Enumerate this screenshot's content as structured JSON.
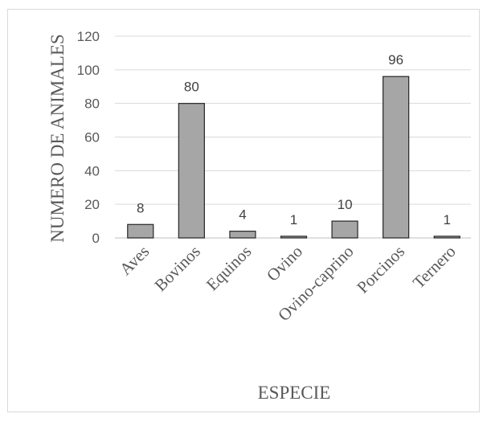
{
  "chart_data": {
    "type": "bar",
    "title": "",
    "xlabel": "ESPECIE",
    "ylabel": "NUMERO DE ANIMALES",
    "categories": [
      "Aves",
      "Bovinos",
      "Equinos",
      "Ovino",
      "Ovino-caprino",
      "Porcinos",
      "Ternero"
    ],
    "values": [
      8,
      80,
      4,
      1,
      10,
      96,
      1
    ],
    "data_labels": [
      "8",
      "80",
      "4",
      "1",
      "10",
      "96",
      "1"
    ],
    "ylim": [
      0,
      120
    ],
    "yticks": [
      0,
      20,
      40,
      60,
      80,
      100,
      120
    ],
    "grid": true,
    "legend": "none",
    "colors": {
      "bar_fill": "#a6a6a6",
      "bar_stroke": "#262626",
      "grid": "#d9d9d9",
      "text": "#595959"
    }
  }
}
